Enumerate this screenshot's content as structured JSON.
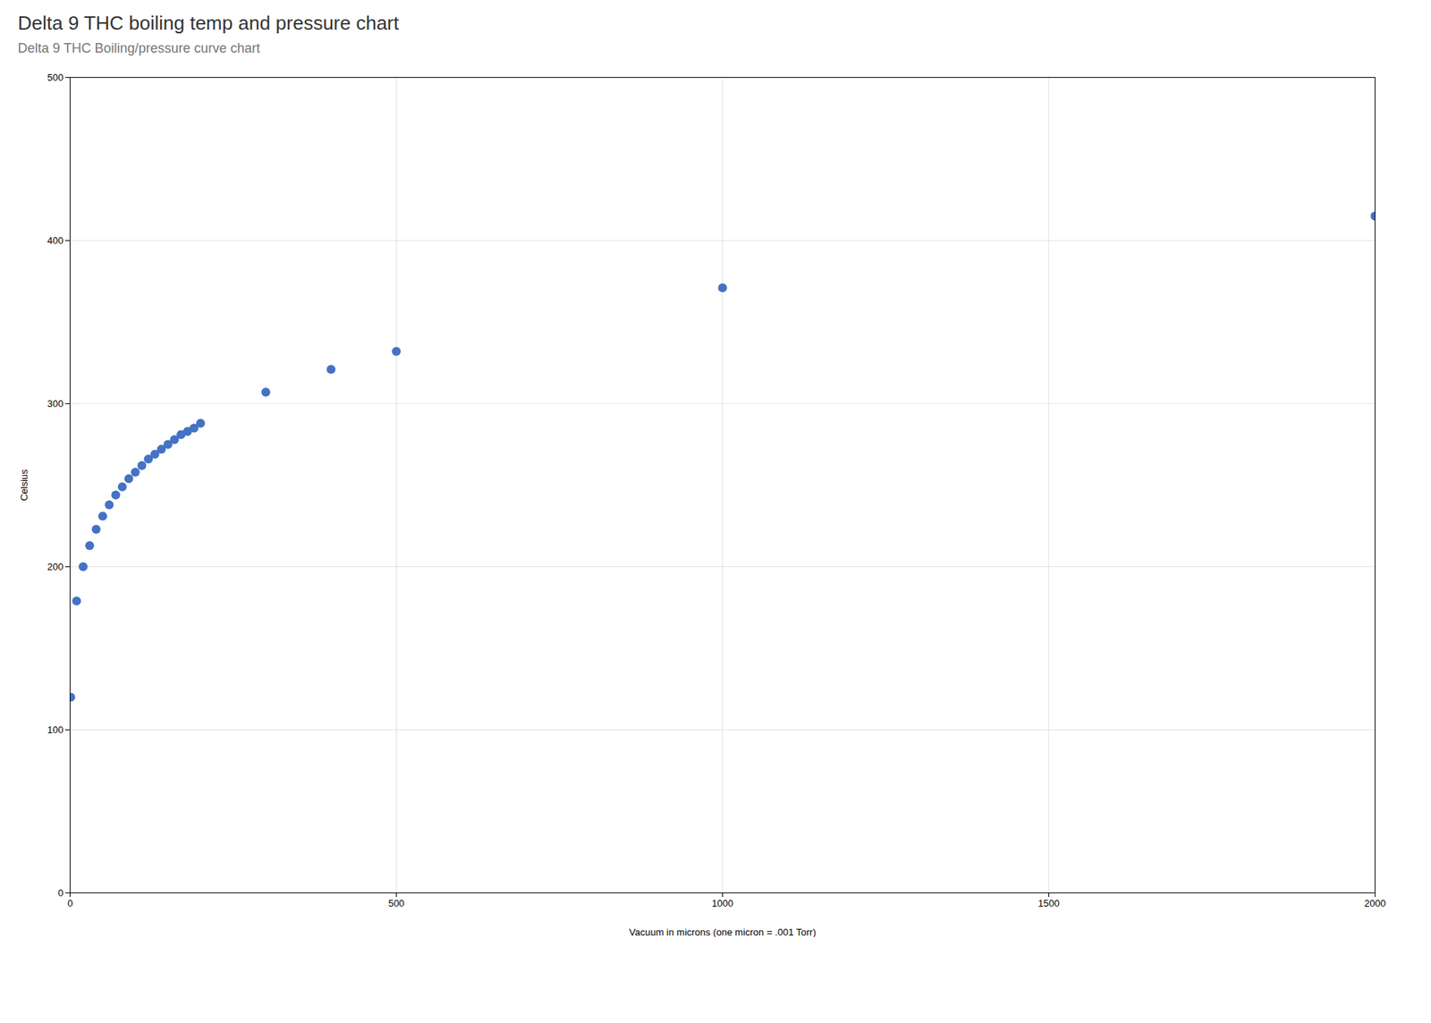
{
  "chart_data": {
    "type": "scatter",
    "title": "Delta 9 THC boiling temp and pressure chart",
    "subtitle": "Delta 9 THC Boiling/pressure curve chart",
    "x_label": "Vacuum in microns (one micron = .001 Torr)",
    "y_label": "Celsius",
    "x": [
      1,
      10,
      20,
      30,
      40,
      50,
      60,
      70,
      80,
      90,
      100,
      110,
      120,
      130,
      140,
      150,
      160,
      170,
      180,
      190,
      200,
      300,
      400,
      500,
      1000,
      2000
    ],
    "values": [
      120,
      179,
      200,
      213,
      223,
      231,
      238,
      244,
      249,
      254,
      258,
      262,
      266,
      269,
      272,
      275,
      278,
      281,
      283,
      285,
      288,
      307,
      321,
      332,
      371,
      415
    ],
    "color": "#4472C4",
    "xlim": [
      0,
      2000
    ],
    "ylim": [
      0,
      500
    ],
    "xticks": [
      0,
      500,
      1000,
      1500,
      2000
    ],
    "yticks": [
      0,
      100,
      200,
      300,
      400,
      500
    ],
    "grid": true
  }
}
